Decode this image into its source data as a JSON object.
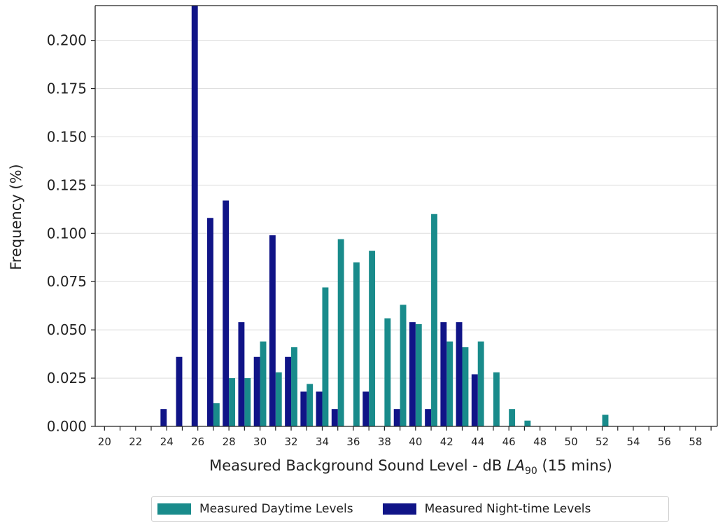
{
  "chart_data": {
    "type": "bar",
    "xlabel": "Measured Background Sound Level - dB LA90 (15 mins)",
    "xlabel_parts": {
      "main": "Measured Background Sound Level - dB ",
      "italic": "LA",
      "sub": "90",
      "tail": " (15 mins)"
    },
    "ylabel": "Frequency (%)",
    "xlim": [
      19.4,
      59.4
    ],
    "ylim": [
      0,
      0.218
    ],
    "x_ticks": [
      20,
      22,
      24,
      26,
      28,
      30,
      32,
      34,
      36,
      38,
      40,
      42,
      44,
      46,
      48,
      50,
      52,
      54,
      56,
      58
    ],
    "y_ticks": [
      0.0,
      0.025,
      0.05,
      0.075,
      0.1,
      0.125,
      0.15,
      0.175,
      0.2
    ],
    "y_tick_labels": [
      "0.000",
      "0.025",
      "0.050",
      "0.075",
      "0.100",
      "0.125",
      "0.150",
      "0.175",
      "0.200"
    ],
    "grid": "horizontal",
    "legend_position": "bottom-center",
    "series": [
      {
        "name": "Measured Daytime Levels",
        "color": "#198b8b",
        "offset": 0.2,
        "x": [
          27,
          28,
          29,
          30,
          31,
          32,
          33,
          34,
          35,
          36,
          37,
          38,
          39,
          40,
          41,
          42,
          43,
          44,
          45,
          46,
          47,
          52
        ],
        "values": [
          0.012,
          0.025,
          0.025,
          0.044,
          0.028,
          0.041,
          0.022,
          0.072,
          0.097,
          0.085,
          0.091,
          0.056,
          0.063,
          0.053,
          0.11,
          0.044,
          0.041,
          0.044,
          0.028,
          0.009,
          0.003,
          0.006
        ]
      },
      {
        "name": "Measured Night-time Levels",
        "color": "#101487",
        "offset": -0.2,
        "x": [
          24,
          25,
          26,
          27,
          28,
          29,
          30,
          31,
          32,
          33,
          34,
          35,
          37,
          39,
          40,
          41,
          42,
          43,
          44
        ],
        "values": [
          0.009,
          0.036,
          0.218,
          0.108,
          0.117,
          0.054,
          0.036,
          0.099,
          0.036,
          0.018,
          0.018,
          0.009,
          0.018,
          0.009,
          0.054,
          0.009,
          0.054,
          0.054,
          0.027
        ]
      }
    ]
  }
}
